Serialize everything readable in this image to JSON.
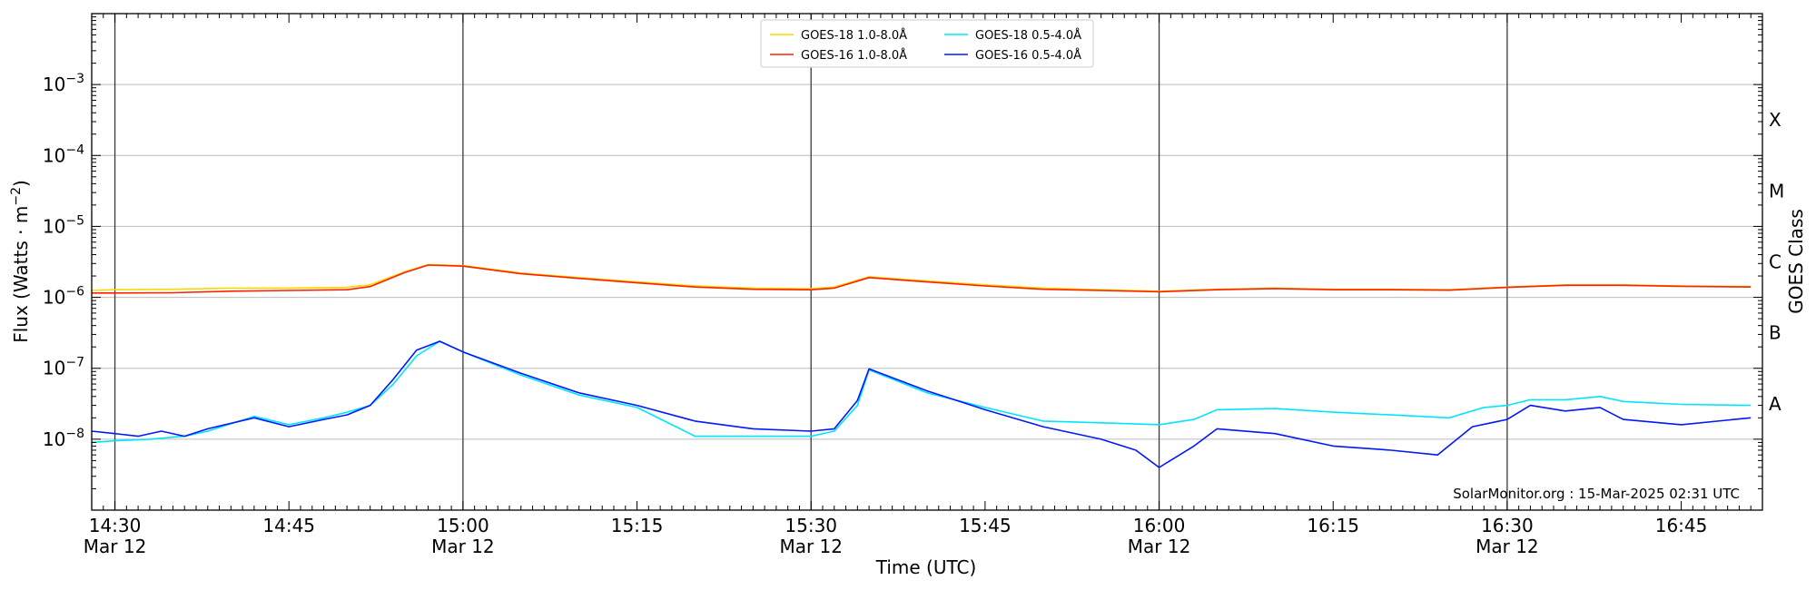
{
  "chart_data": {
    "type": "line",
    "xlabel": "Time (UTC)",
    "ylabel": "Flux (Watts · m",
    "ylabel_sup": "−2",
    "ylabel_close": ")",
    "right_label": "GOES Class",
    "yscale": "log",
    "ylim": [
      1e-09,
      0.01
    ],
    "xlim": [
      "2025-03-12T14:28:00Z",
      "2025-03-12T16:52:00Z"
    ],
    "x_ticks": [
      {
        "t": "2025-03-12T14:30:00Z",
        "label": "14:30",
        "sub": "Mar 12"
      },
      {
        "t": "2025-03-12T14:45:00Z",
        "label": "14:45",
        "sub": ""
      },
      {
        "t": "2025-03-12T15:00:00Z",
        "label": "15:00",
        "sub": "Mar 12"
      },
      {
        "t": "2025-03-12T15:15:00Z",
        "label": "15:15",
        "sub": ""
      },
      {
        "t": "2025-03-12T15:30:00Z",
        "label": "15:30",
        "sub": "Mar 12"
      },
      {
        "t": "2025-03-12T15:45:00Z",
        "label": "15:45",
        "sub": ""
      },
      {
        "t": "2025-03-12T16:00:00Z",
        "label": "16:00",
        "sub": "Mar 12"
      },
      {
        "t": "2025-03-12T16:15:00Z",
        "label": "16:15",
        "sub": ""
      },
      {
        "t": "2025-03-12T16:30:00Z",
        "label": "16:30",
        "sub": "Mar 12"
      },
      {
        "t": "2025-03-12T16:45:00Z",
        "label": "16:45",
        "sub": ""
      }
    ],
    "vlines": [
      "2025-03-12T14:30:00Z",
      "2025-03-12T15:00:00Z",
      "2025-03-12T15:30:00Z",
      "2025-03-12T16:00:00Z",
      "2025-03-12T16:30:00Z"
    ],
    "y_ticks": [
      {
        "v": 0.001,
        "base": "10",
        "exp": "−3"
      },
      {
        "v": 0.0001,
        "base": "10",
        "exp": "−4"
      },
      {
        "v": 1e-05,
        "base": "10",
        "exp": "−5"
      },
      {
        "v": 1e-06,
        "base": "10",
        "exp": "−6"
      },
      {
        "v": 1e-07,
        "base": "10",
        "exp": "−7"
      },
      {
        "v": 1e-08,
        "base": "10",
        "exp": "−8"
      }
    ],
    "class_labels": [
      {
        "label": "X",
        "v": 0.000316
      },
      {
        "label": "M",
        "v": 3.16e-05
      },
      {
        "label": "C",
        "v": 3.16e-06
      },
      {
        "label": "B",
        "v": 3.16e-07
      },
      {
        "label": "A",
        "v": 3.16e-08
      }
    ],
    "grid": true,
    "legend_position": "top-center",
    "annotation": "SolarMonitor.org : 15-Mar-2025 02:31 UTC",
    "series": [
      {
        "name": "GOES-18 1.0-8.0Å",
        "color": "#ffd700",
        "x": [
          "2025-03-12T14:28:00Z",
          "2025-03-12T14:30:00Z",
          "2025-03-12T14:35:00Z",
          "2025-03-12T14:40:00Z",
          "2025-03-12T14:45:00Z",
          "2025-03-12T14:50:00Z",
          "2025-03-12T14:52:00Z",
          "2025-03-12T14:55:00Z",
          "2025-03-12T14:57:00Z",
          "2025-03-12T15:00:00Z",
          "2025-03-12T15:05:00Z",
          "2025-03-12T15:10:00Z",
          "2025-03-12T15:15:00Z",
          "2025-03-12T15:20:00Z",
          "2025-03-12T15:25:00Z",
          "2025-03-12T15:30:00Z",
          "2025-03-12T15:32:00Z",
          "2025-03-12T15:35:00Z",
          "2025-03-12T15:40:00Z",
          "2025-03-12T15:45:00Z",
          "2025-03-12T15:50:00Z",
          "2025-03-12T15:55:00Z",
          "2025-03-12T16:00:00Z",
          "2025-03-12T16:05:00Z",
          "2025-03-12T16:10:00Z",
          "2025-03-12T16:15:00Z",
          "2025-03-12T16:20:00Z",
          "2025-03-12T16:25:00Z",
          "2025-03-12T16:30:00Z",
          "2025-03-12T16:35:00Z",
          "2025-03-12T16:40:00Z",
          "2025-03-12T16:45:00Z",
          "2025-03-12T16:51:00Z"
        ],
        "values": [
          1.25e-06,
          1.28e-06,
          1.3e-06,
          1.35e-06,
          1.35e-06,
          1.38e-06,
          1.5e-06,
          2.3e-06,
          2.9e-06,
          2.8e-06,
          2.2e-06,
          1.9e-06,
          1.65e-06,
          1.45e-06,
          1.35e-06,
          1.32e-06,
          1.4e-06,
          1.95e-06,
          1.7e-06,
          1.5e-06,
          1.35e-06,
          1.28e-06,
          1.22e-06,
          1.3e-06,
          1.35e-06,
          1.3e-06,
          1.3e-06,
          1.28e-06,
          1.4e-06,
          1.5e-06,
          1.5e-06,
          1.45e-06,
          1.42e-06
        ]
      },
      {
        "name": "GOES-16 1.0-8.0Å",
        "color": "#ff2000",
        "x": [
          "2025-03-12T14:28:00Z",
          "2025-03-12T14:30:00Z",
          "2025-03-12T14:35:00Z",
          "2025-03-12T14:40:00Z",
          "2025-03-12T14:45:00Z",
          "2025-03-12T14:50:00Z",
          "2025-03-12T14:52:00Z",
          "2025-03-12T14:55:00Z",
          "2025-03-12T14:57:00Z",
          "2025-03-12T15:00:00Z",
          "2025-03-12T15:05:00Z",
          "2025-03-12T15:10:00Z",
          "2025-03-12T15:15:00Z",
          "2025-03-12T15:20:00Z",
          "2025-03-12T15:25:00Z",
          "2025-03-12T15:30:00Z",
          "2025-03-12T15:32:00Z",
          "2025-03-12T15:35:00Z",
          "2025-03-12T15:40:00Z",
          "2025-03-12T15:45:00Z",
          "2025-03-12T15:50:00Z",
          "2025-03-12T15:55:00Z",
          "2025-03-12T16:00:00Z",
          "2025-03-12T16:05:00Z",
          "2025-03-12T16:10:00Z",
          "2025-03-12T16:15:00Z",
          "2025-03-12T16:20:00Z",
          "2025-03-12T16:25:00Z",
          "2025-03-12T16:30:00Z",
          "2025-03-12T16:35:00Z",
          "2025-03-12T16:40:00Z",
          "2025-03-12T16:45:00Z",
          "2025-03-12T16:51:00Z"
        ],
        "values": [
          1.15e-06,
          1.15e-06,
          1.16e-06,
          1.22e-06,
          1.25e-06,
          1.28e-06,
          1.42e-06,
          2.25e-06,
          2.85e-06,
          2.75e-06,
          2.15e-06,
          1.85e-06,
          1.6e-06,
          1.4e-06,
          1.3e-06,
          1.28e-06,
          1.35e-06,
          1.9e-06,
          1.65e-06,
          1.45e-06,
          1.3e-06,
          1.25e-06,
          1.2e-06,
          1.28e-06,
          1.33e-06,
          1.28e-06,
          1.28e-06,
          1.26e-06,
          1.38e-06,
          1.48e-06,
          1.48e-06,
          1.43e-06,
          1.4e-06
        ]
      },
      {
        "name": "GOES-18 0.5-4.0Å",
        "color": "#00e5ff",
        "x": [
          "2025-03-12T14:28:00Z",
          "2025-03-12T14:30:00Z",
          "2025-03-12T14:33:00Z",
          "2025-03-12T14:36:00Z",
          "2025-03-12T14:38:00Z",
          "2025-03-12T14:42:00Z",
          "2025-03-12T14:45:00Z",
          "2025-03-12T14:48:00Z",
          "2025-03-12T14:50:00Z",
          "2025-03-12T14:52:00Z",
          "2025-03-12T14:54:00Z",
          "2025-03-12T14:56:00Z",
          "2025-03-12T14:58:00Z",
          "2025-03-12T15:00:00Z",
          "2025-03-12T15:05:00Z",
          "2025-03-12T15:10:00Z",
          "2025-03-12T15:15:00Z",
          "2025-03-12T15:18:00Z",
          "2025-03-12T15:20:00Z",
          "2025-03-12T15:25:00Z",
          "2025-03-12T15:30:00Z",
          "2025-03-12T15:32:00Z",
          "2025-03-12T15:34:00Z",
          "2025-03-12T15:35:00Z",
          "2025-03-12T15:40:00Z",
          "2025-03-12T15:45:00Z",
          "2025-03-12T15:50:00Z",
          "2025-03-12T15:55:00Z",
          "2025-03-12T16:00:00Z",
          "2025-03-12T16:03:00Z",
          "2025-03-12T16:05:00Z",
          "2025-03-12T16:10:00Z",
          "2025-03-12T16:15:00Z",
          "2025-03-12T16:20:00Z",
          "2025-03-12T16:25:00Z",
          "2025-03-12T16:28:00Z",
          "2025-03-12T16:30:00Z",
          "2025-03-12T16:32:00Z",
          "2025-03-12T16:35:00Z",
          "2025-03-12T16:38:00Z",
          "2025-03-12T16:40:00Z",
          "2025-03-12T16:45:00Z",
          "2025-03-12T16:51:00Z"
        ],
        "values": [
          9e-09,
          9.5e-09,
          1e-08,
          1.1e-08,
          1.3e-08,
          2.1e-08,
          1.6e-08,
          2e-08,
          2.4e-08,
          3e-08,
          6e-08,
          1.5e-07,
          2.4e-07,
          1.7e-07,
          8e-08,
          4.2e-08,
          2.8e-08,
          1.6e-08,
          1.1e-08,
          1.1e-08,
          1.1e-08,
          1.3e-08,
          3e-08,
          9.5e-08,
          4.5e-08,
          2.8e-08,
          1.8e-08,
          1.7e-08,
          1.6e-08,
          1.9e-08,
          2.6e-08,
          2.7e-08,
          2.4e-08,
          2.2e-08,
          2e-08,
          2.8e-08,
          3e-08,
          3.6e-08,
          3.6e-08,
          4e-08,
          3.4e-08,
          3.1e-08,
          3e-08
        ]
      },
      {
        "name": "GOES-16 0.5-4.0Å",
        "color": "#0018ff",
        "x": [
          "2025-03-12T14:28:00Z",
          "2025-03-12T14:30:00Z",
          "2025-03-12T14:32:00Z",
          "2025-03-12T14:34:00Z",
          "2025-03-12T14:36:00Z",
          "2025-03-12T14:38:00Z",
          "2025-03-12T14:42:00Z",
          "2025-03-12T14:45:00Z",
          "2025-03-12T14:48:00Z",
          "2025-03-12T14:50:00Z",
          "2025-03-12T14:52:00Z",
          "2025-03-12T14:54:00Z",
          "2025-03-12T14:56:00Z",
          "2025-03-12T14:58:00Z",
          "2025-03-12T15:00:00Z",
          "2025-03-12T15:05:00Z",
          "2025-03-12T15:10:00Z",
          "2025-03-12T15:15:00Z",
          "2025-03-12T15:20:00Z",
          "2025-03-12T15:25:00Z",
          "2025-03-12T15:30:00Z",
          "2025-03-12T15:32:00Z",
          "2025-03-12T15:34:00Z",
          "2025-03-12T15:35:00Z",
          "2025-03-12T15:40:00Z",
          "2025-03-12T15:45:00Z",
          "2025-03-12T15:50:00Z",
          "2025-03-12T15:55:00Z",
          "2025-03-12T15:58:00Z",
          "2025-03-12T16:00:00Z",
          "2025-03-12T16:03:00Z",
          "2025-03-12T16:05:00Z",
          "2025-03-12T16:10:00Z",
          "2025-03-12T16:15:00Z",
          "2025-03-12T16:20:00Z",
          "2025-03-12T16:24:00Z",
          "2025-03-12T16:27:00Z",
          "2025-03-12T16:30:00Z",
          "2025-03-12T16:32:00Z",
          "2025-03-12T16:35:00Z",
          "2025-03-12T16:38:00Z",
          "2025-03-12T16:40:00Z",
          "2025-03-12T16:45:00Z",
          "2025-03-12T16:51:00Z"
        ],
        "values": [
          1.3e-08,
          1.2e-08,
          1.1e-08,
          1.3e-08,
          1.1e-08,
          1.4e-08,
          2e-08,
          1.5e-08,
          1.9e-08,
          2.2e-08,
          3e-08,
          7e-08,
          1.8e-07,
          2.4e-07,
          1.7e-07,
          8.5e-08,
          4.5e-08,
          3e-08,
          1.8e-08,
          1.4e-08,
          1.3e-08,
          1.4e-08,
          3.5e-08,
          9.8e-08,
          4.8e-08,
          2.6e-08,
          1.5e-08,
          1e-08,
          7e-09,
          4e-09,
          8e-09,
          1.4e-08,
          1.2e-08,
          8e-09,
          7e-09,
          6e-09,
          1.5e-08,
          1.9e-08,
          3e-08,
          2.5e-08,
          2.8e-08,
          1.9e-08,
          1.6e-08,
          2e-08
        ]
      }
    ]
  }
}
